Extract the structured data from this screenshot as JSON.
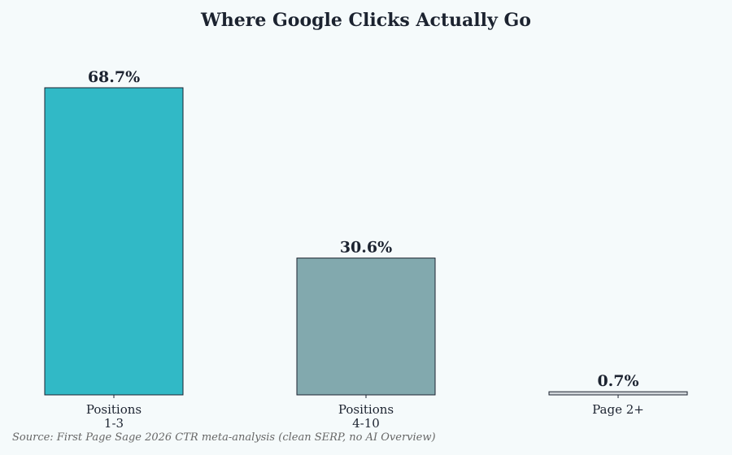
{
  "chart_data": {
    "type": "bar",
    "title": "Where Google Clicks Actually Go",
    "categories": [
      "Positions\n1-3",
      "Positions\n4-10",
      "Page 2+"
    ],
    "values": [
      68.7,
      30.6,
      0.7
    ],
    "value_labels": [
      "68.7%",
      "30.6%",
      "0.7%"
    ],
    "colors": [
      "#31b9c6",
      "#82a9ae",
      "#d3d8dc"
    ],
    "source": "Source: First Page Sage 2026 CTR meta-analysis (clean SERP, no AI Overview)"
  }
}
